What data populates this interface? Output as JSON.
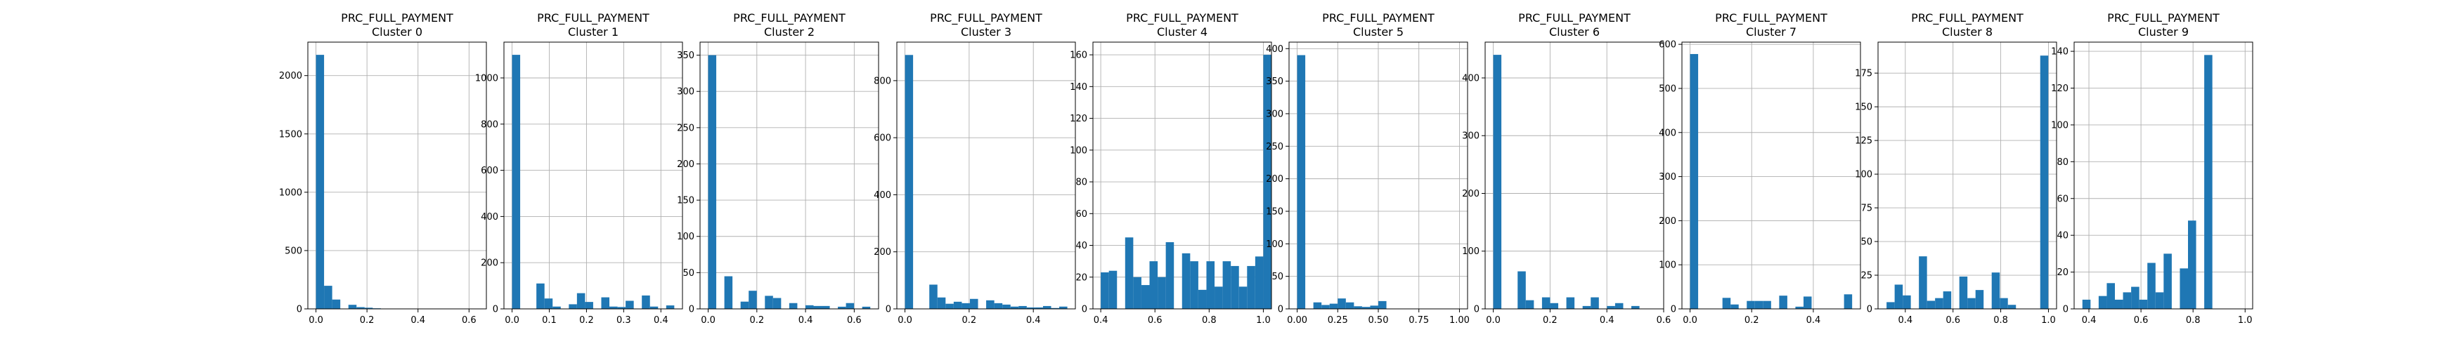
{
  "chart_data": [
    {
      "type": "bar",
      "title": "PRC_FULL_PAYMENT",
      "subtitle": "Cluster 0",
      "xlim": [
        -0.0318,
        0.668
      ],
      "ylim": [
        0,
        2287
      ],
      "xticks": [
        {
          "v": 0,
          "label": "0.0"
        },
        {
          "v": 0.2,
          "label": "0.2"
        },
        {
          "v": 0.4,
          "label": "0.4"
        },
        {
          "v": 0.6,
          "label": "0.6"
        }
      ],
      "yticks": [
        {
          "v": 0,
          "label": "0"
        },
        {
          "v": 500,
          "label": "500"
        },
        {
          "v": 1000,
          "label": "1000"
        },
        {
          "v": 1500,
          "label": "1500"
        },
        {
          "v": 2000,
          "label": "2000"
        }
      ],
      "bin_start": 0,
      "bin_width": 0.0318,
      "values": [
        2178,
        198,
        80,
        0,
        35,
        15,
        10,
        5,
        0,
        3,
        2,
        2,
        1,
        0,
        0,
        0,
        0,
        0,
        0,
        0
      ]
    },
    {
      "type": "bar",
      "title": "PRC_FULL_PAYMENT",
      "subtitle": "Cluster 1",
      "xlim": [
        -0.0218,
        0.458
      ],
      "ylim": [
        0,
        1155
      ],
      "xticks": [
        {
          "v": 0,
          "label": "0.0"
        },
        {
          "v": 0.1,
          "label": "0.1"
        },
        {
          "v": 0.2,
          "label": "0.2"
        },
        {
          "v": 0.3,
          "label": "0.3"
        },
        {
          "v": 0.4,
          "label": "0.4"
        }
      ],
      "yticks": [
        {
          "v": 0,
          "label": "0"
        },
        {
          "v": 200,
          "label": "200"
        },
        {
          "v": 400,
          "label": "400"
        },
        {
          "v": 600,
          "label": "600"
        },
        {
          "v": 800,
          "label": "800"
        },
        {
          "v": 1000,
          "label": "1000"
        }
      ],
      "bin_start": 0,
      "bin_width": 0.0218,
      "values": [
        1100,
        0,
        0,
        110,
        45,
        10,
        0,
        20,
        68,
        30,
        0,
        50,
        10,
        8,
        35,
        0,
        58,
        10,
        0,
        15
      ]
    },
    {
      "type": "bar",
      "title": "PRC_FULL_PAYMENT",
      "subtitle": "Cluster 2",
      "xlim": [
        -0.0333,
        0.7
      ],
      "ylim": [
        0,
        368
      ],
      "xticks": [
        {
          "v": 0,
          "label": "0.0"
        },
        {
          "v": 0.2,
          "label": "0.2"
        },
        {
          "v": 0.4,
          "label": "0.4"
        },
        {
          "v": 0.6,
          "label": "0.6"
        }
      ],
      "yticks": [
        {
          "v": 0,
          "label": "0"
        },
        {
          "v": 50,
          "label": "50"
        },
        {
          "v": 100,
          "label": "100"
        },
        {
          "v": 150,
          "label": "150"
        },
        {
          "v": 200,
          "label": "200"
        },
        {
          "v": 250,
          "label": "250"
        },
        {
          "v": 300,
          "label": "300"
        },
        {
          "v": 350,
          "label": "350"
        }
      ],
      "bin_start": 0,
      "bin_width": 0.0333,
      "values": [
        350,
        0,
        45,
        0,
        10,
        25,
        0,
        18,
        15,
        0,
        8,
        0,
        5,
        4,
        4,
        0,
        3,
        8,
        0,
        3
      ]
    },
    {
      "type": "bar",
      "title": "PRC_FULL_PAYMENT",
      "subtitle": "Cluster 3",
      "xlim": [
        -0.0253,
        0.531
      ],
      "ylim": [
        0,
        935
      ],
      "xticks": [
        {
          "v": 0,
          "label": "0.0"
        },
        {
          "v": 0.2,
          "label": "0.2"
        },
        {
          "v": 0.4,
          "label": "0.4"
        }
      ],
      "yticks": [
        {
          "v": 0,
          "label": "0"
        },
        {
          "v": 200,
          "label": "200"
        },
        {
          "v": 400,
          "label": "400"
        },
        {
          "v": 600,
          "label": "600"
        },
        {
          "v": 800,
          "label": "800"
        }
      ],
      "bin_start": 0,
      "bin_width": 0.0253,
      "values": [
        890,
        0,
        0,
        85,
        40,
        18,
        25,
        20,
        35,
        0,
        30,
        20,
        15,
        8,
        10,
        5,
        5,
        10,
        3,
        8
      ]
    },
    {
      "type": "bar",
      "title": "PRC_FULL_PAYMENT",
      "subtitle": "Cluster 4",
      "xlim": [
        0.3712,
        1.03
      ],
      "ylim": [
        0,
        168
      ],
      "xticks": [
        {
          "v": 0.4,
          "label": "0.4"
        },
        {
          "v": 0.6,
          "label": "0.6"
        },
        {
          "v": 0.8,
          "label": "0.8"
        },
        {
          "v": 1.0,
          "label": "1.0"
        }
      ],
      "yticks": [
        {
          "v": 0,
          "label": "0"
        },
        {
          "v": 20,
          "label": "20"
        },
        {
          "v": 40,
          "label": "40"
        },
        {
          "v": 60,
          "label": "60"
        },
        {
          "v": 80,
          "label": "80"
        },
        {
          "v": 100,
          "label": "100"
        },
        {
          "v": 120,
          "label": "120"
        },
        {
          "v": 140,
          "label": "140"
        },
        {
          "v": 160,
          "label": "160"
        }
      ],
      "bin_start": 0.4,
      "bin_width": 0.03,
      "values": [
        23,
        24,
        0,
        45,
        20,
        15,
        30,
        20,
        42,
        0,
        35,
        30,
        12,
        30,
        14,
        30,
        27,
        14,
        27,
        33,
        160
      ]
    },
    {
      "type": "bar",
      "title": "PRC_FULL_PAYMENT",
      "subtitle": "Cluster 5",
      "xlim": [
        -0.05,
        1.05
      ],
      "ylim": [
        0,
        410
      ],
      "xticks": [
        {
          "v": 0,
          "label": "0.00"
        },
        {
          "v": 0.25,
          "label": "0.25"
        },
        {
          "v": 0.5,
          "label": "0.50"
        },
        {
          "v": 0.75,
          "label": "0.75"
        },
        {
          "v": 1.0,
          "label": "1.00"
        }
      ],
      "yticks": [
        {
          "v": 0,
          "label": "0"
        },
        {
          "v": 50,
          "label": "50"
        },
        {
          "v": 100,
          "label": "100"
        },
        {
          "v": 150,
          "label": "150"
        },
        {
          "v": 200,
          "label": "200"
        },
        {
          "v": 250,
          "label": "250"
        },
        {
          "v": 300,
          "label": "300"
        },
        {
          "v": 350,
          "label": "350"
        },
        {
          "v": 400,
          "label": "400"
        }
      ],
      "bin_start": 0,
      "bin_width": 0.05,
      "values": [
        390,
        0,
        10,
        6,
        8,
        16,
        10,
        4,
        3,
        5,
        12,
        0,
        0,
        0,
        0,
        0,
        0,
        0,
        0,
        0
      ]
    },
    {
      "type": "bar",
      "title": "PRC_FULL_PAYMENT",
      "subtitle": "Cluster 6",
      "xlim": [
        -0.0286,
        0.6
      ],
      "ylim": [
        0,
        462
      ],
      "xticks": [
        {
          "v": 0,
          "label": "0.0"
        },
        {
          "v": 0.2,
          "label": "0.2"
        },
        {
          "v": 0.4,
          "label": "0.4"
        },
        {
          "v": 0.6,
          "label": "0.6"
        }
      ],
      "yticks": [
        {
          "v": 0,
          "label": "0"
        },
        {
          "v": 100,
          "label": "100"
        },
        {
          "v": 200,
          "label": "200"
        },
        {
          "v": 300,
          "label": "300"
        },
        {
          "v": 400,
          "label": "400"
        }
      ],
      "bin_start": 0,
      "bin_width": 0.0286,
      "values": [
        440,
        0,
        0,
        65,
        15,
        0,
        20,
        10,
        0,
        20,
        0,
        5,
        20,
        0,
        5,
        10,
        0,
        5,
        0,
        0
      ]
    },
    {
      "type": "bar",
      "title": "PRC_FULL_PAYMENT",
      "subtitle": "Cluster 7",
      "xlim": [
        -0.0263,
        0.553
      ],
      "ylim": [
        0,
        605
      ],
      "xticks": [
        {
          "v": 0,
          "label": "0.0"
        },
        {
          "v": 0.2,
          "label": "0.2"
        },
        {
          "v": 0.4,
          "label": "0.4"
        }
      ],
      "yticks": [
        {
          "v": 0,
          "label": "0"
        },
        {
          "v": 100,
          "label": "100"
        },
        {
          "v": 200,
          "label": "200"
        },
        {
          "v": 300,
          "label": "300"
        },
        {
          "v": 400,
          "label": "400"
        },
        {
          "v": 500,
          "label": "500"
        },
        {
          "v": 600,
          "label": "600"
        }
      ],
      "bin_start": 0,
      "bin_width": 0.0263,
      "values": [
        578,
        0,
        0,
        0,
        25,
        10,
        0,
        18,
        18,
        18,
        0,
        30,
        0,
        5,
        28,
        0,
        0,
        0,
        0,
        33
      ]
    },
    {
      "type": "bar",
      "title": "PRC_FULL_PAYMENT",
      "subtitle": "Cluster 8",
      "xlim": [
        0.2857,
        1.034
      ],
      "ylim": [
        0,
        198
      ],
      "xticks": [
        {
          "v": 0.4,
          "label": "0.4"
        },
        {
          "v": 0.6,
          "label": "0.6"
        },
        {
          "v": 0.8,
          "label": "0.8"
        },
        {
          "v": 1.0,
          "label": "1.0"
        }
      ],
      "yticks": [
        {
          "v": 0,
          "label": "0"
        },
        {
          "v": 25,
          "label": "25"
        },
        {
          "v": 50,
          "label": "50"
        },
        {
          "v": 75,
          "label": "75"
        },
        {
          "v": 100,
          "label": "100"
        },
        {
          "v": 125,
          "label": "125"
        },
        {
          "v": 150,
          "label": "150"
        },
        {
          "v": 175,
          "label": "175"
        }
      ],
      "bin_start": 0.3214,
      "bin_width": 0.0339,
      "values": [
        5,
        18,
        10,
        0,
        39,
        6,
        8,
        13,
        0,
        24,
        8,
        14,
        0,
        27,
        8,
        3,
        0,
        0,
        0,
        188
      ]
    },
    {
      "type": "bar",
      "title": "PRC_FULL_PAYMENT",
      "subtitle": "Cluster 9",
      "xlim": [
        0.3432,
        1.029
      ],
      "ylim": [
        0,
        145
      ],
      "xticks": [
        {
          "v": 0.4,
          "label": "0.4"
        },
        {
          "v": 0.6,
          "label": "0.6"
        },
        {
          "v": 0.8,
          "label": "0.8"
        },
        {
          "v": 1.0,
          "label": "1.0"
        }
      ],
      "yticks": [
        {
          "v": 0,
          "label": "0"
        },
        {
          "v": 20,
          "label": "20"
        },
        {
          "v": 40,
          "label": "40"
        },
        {
          "v": 60,
          "label": "60"
        },
        {
          "v": 80,
          "label": "80"
        },
        {
          "v": 100,
          "label": "100"
        },
        {
          "v": 120,
          "label": "120"
        },
        {
          "v": 140,
          "label": "140"
        }
      ],
      "bin_start": 0.375,
      "bin_width": 0.0312,
      "values": [
        5,
        0,
        7,
        14,
        5,
        9,
        12,
        5,
        25,
        9,
        30,
        0,
        22,
        48,
        0,
        138
      ]
    }
  ],
  "colors": {
    "bar": "#1f77b4",
    "grid": "#b0b0b0",
    "axis": "#000000"
  }
}
